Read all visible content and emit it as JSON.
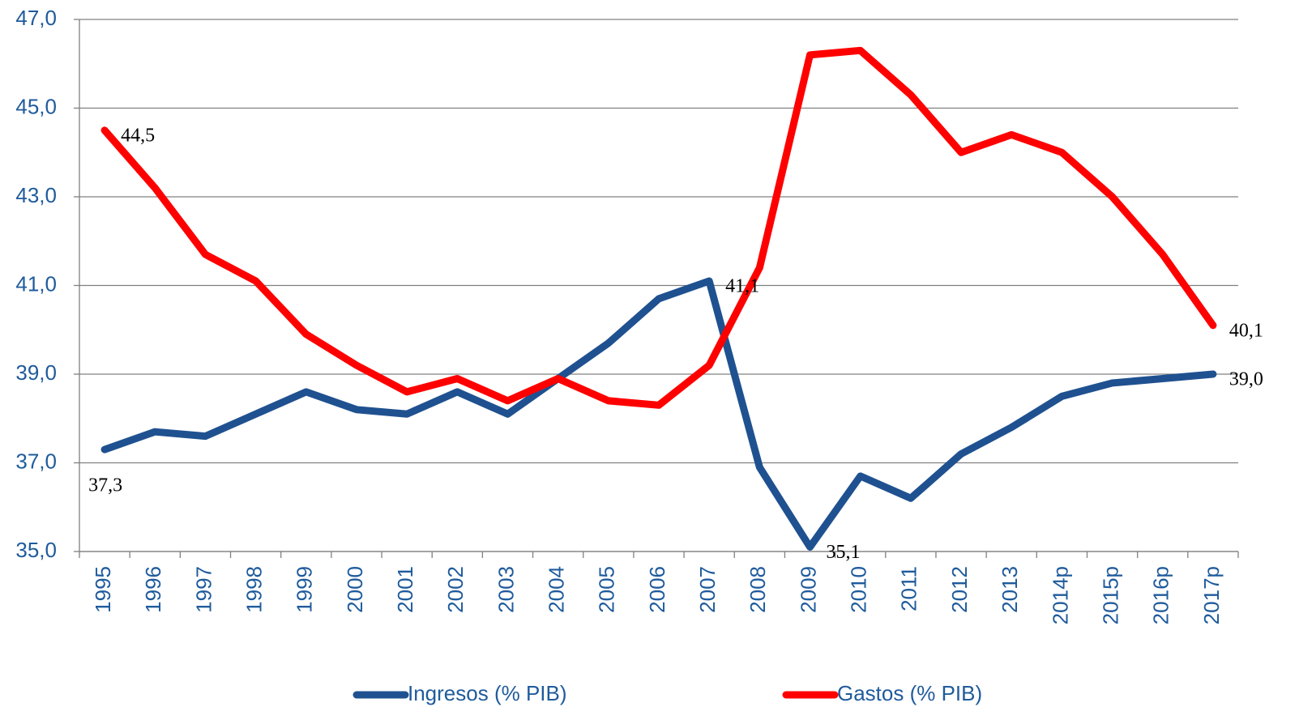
{
  "chart_data": {
    "type": "line",
    "categories": [
      "1995",
      "1996",
      "1997",
      "1998",
      "1999",
      "2000",
      "2001",
      "2002",
      "2003",
      "2004",
      "2005",
      "2006",
      "2007",
      "2008",
      "2009",
      "2010",
      "2011",
      "2012",
      "2013",
      "2014p",
      "2015p",
      "2016p",
      "2017p"
    ],
    "series": [
      {
        "name": "Ingresos (% PIB)",
        "color": "#1f5190",
        "values": [
          37.3,
          37.7,
          37.6,
          38.1,
          38.6,
          38.2,
          38.1,
          38.6,
          38.1,
          38.9,
          39.7,
          40.7,
          41.1,
          36.9,
          35.1,
          36.7,
          36.2,
          37.2,
          37.8,
          38.5,
          38.8,
          38.9,
          39.0
        ],
        "value_labels": [
          "37,3",
          null,
          null,
          null,
          null,
          null,
          null,
          null,
          null,
          null,
          null,
          null,
          "41,1",
          null,
          "35,1",
          null,
          null,
          null,
          null,
          null,
          null,
          null,
          "39,0"
        ]
      },
      {
        "name": "Gastos (% PIB)",
        "color": "#ff0000",
        "values": [
          44.5,
          43.2,
          41.7,
          41.1,
          39.9,
          39.2,
          38.6,
          38.9,
          38.4,
          38.9,
          38.4,
          38.3,
          39.2,
          41.4,
          46.2,
          46.3,
          45.3,
          44.0,
          44.4,
          44.0,
          43.0,
          41.7,
          40.1
        ],
        "value_labels": [
          "44,5",
          null,
          null,
          null,
          null,
          null,
          null,
          null,
          null,
          null,
          null,
          null,
          null,
          null,
          null,
          null,
          null,
          null,
          null,
          null,
          null,
          null,
          "40,1"
        ]
      }
    ],
    "ylim": [
      35,
      47
    ],
    "yticks": [
      {
        "value": 35,
        "label": "35,0"
      },
      {
        "value": 37,
        "label": "37,0"
      },
      {
        "value": 39,
        "label": "39,0"
      },
      {
        "value": 41,
        "label": "41,0"
      },
      {
        "value": 43,
        "label": "43,0"
      },
      {
        "value": 45,
        "label": "45,0"
      },
      {
        "value": 47,
        "label": "47,0"
      }
    ],
    "grid": true,
    "legend": "bottom"
  }
}
